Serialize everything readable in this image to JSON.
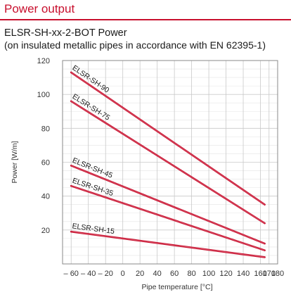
{
  "header": {
    "title": "Power output",
    "accent_color": "#c8102e"
  },
  "chart_data": {
    "type": "line",
    "title": "ELSR-SH-xx-2-BOT Power",
    "subtitle": "(on insulated metallic pipes in accordance with EN 62395-1)",
    "xlabel": "Pipe temperature [°C]",
    "ylabel": "Power [W/m]",
    "xlim": [
      -70,
      180
    ],
    "ylim": [
      0,
      120
    ],
    "xticks": [
      -60,
      -40,
      -20,
      0,
      20,
      40,
      60,
      80,
      100,
      120,
      140,
      160,
      170,
      180
    ],
    "xtick_labels": [
      "– 60",
      "– 40",
      "– 20",
      "0",
      "20",
      "40",
      "60",
      "80",
      "100",
      "120",
      "140",
      "160",
      "170",
      "180"
    ],
    "yticks": [
      20,
      40,
      60,
      80,
      100,
      120
    ],
    "grid": true,
    "line_color": "#c8102e",
    "series": [
      {
        "name": "ELSR-SH-90",
        "x": [
          -60,
          165
        ],
        "y": [
          113,
          35
        ]
      },
      {
        "name": "ELSR-SH-75",
        "x": [
          -60,
          165
        ],
        "y": [
          96,
          24
        ]
      },
      {
        "name": "ELSR-SH-45",
        "x": [
          -60,
          165
        ],
        "y": [
          58,
          12
        ]
      },
      {
        "name": "ELSR-SH-35",
        "x": [
          -60,
          165
        ],
        "y": [
          46,
          8
        ]
      },
      {
        "name": "ELSR-SH-15",
        "x": [
          -60,
          165
        ],
        "y": [
          19,
          4
        ]
      }
    ]
  }
}
